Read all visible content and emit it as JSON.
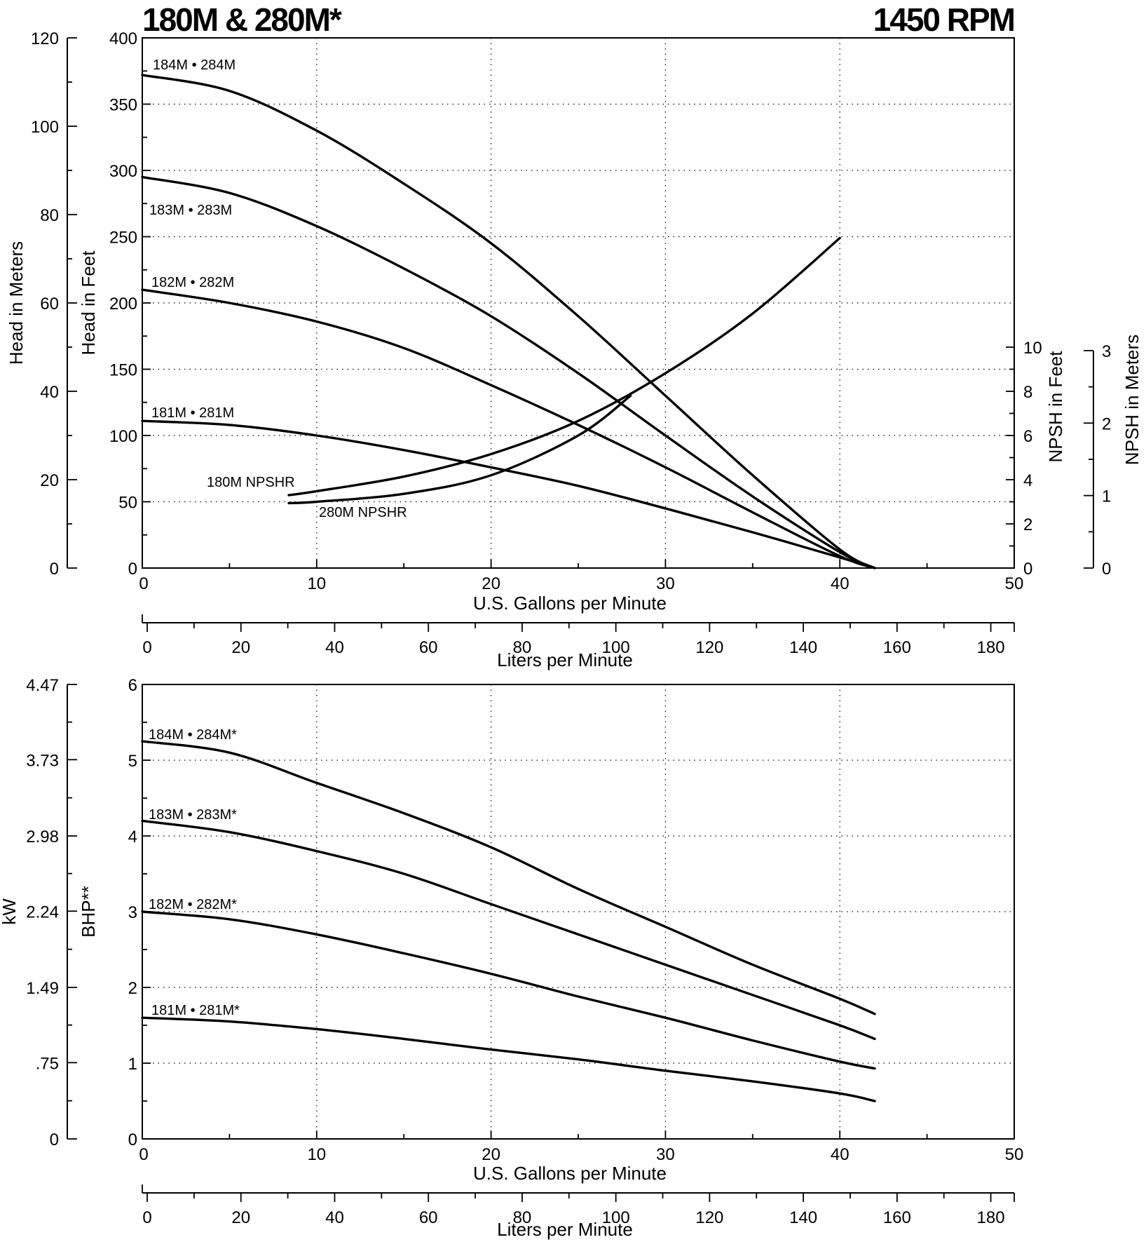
{
  "chart_data": [
    {
      "id": "head",
      "type": "line",
      "title": "180M & 280M*",
      "title_right": "1450 RPM",
      "xlabel": "U.S. Gallons per Minute",
      "x2label": "Liters per Minute",
      "ylabel": "Head in Feet",
      "y2label": "Head in Meters",
      "y3label": "NPSH in Feet",
      "y4label": "NPSH in Meters",
      "xlim": [
        0,
        50
      ],
      "ylim": [
        0,
        400
      ],
      "xticks": [
        "0",
        "10",
        "20",
        "30",
        "40",
        "50"
      ],
      "x2ticks": [
        "0",
        "20",
        "40",
        "60",
        "80",
        "100",
        "120",
        "140",
        "160",
        "180"
      ],
      "yticks": [
        "0",
        "50",
        "100",
        "150",
        "200",
        "250",
        "300",
        "350",
        "400"
      ],
      "y2ticks": [
        "0",
        "20",
        "40",
        "60",
        "80",
        "100",
        "120"
      ],
      "y3ticks": [
        "0",
        "2",
        "4",
        "6",
        "8",
        "10"
      ],
      "y4ticks": [
        "0",
        "1",
        "2",
        "3"
      ],
      "series": [
        {
          "name": "184M • 284M",
          "x": [
            0,
            5,
            10,
            15,
            20,
            25,
            30,
            35,
            40,
            42
          ],
          "y": [
            372,
            360,
            330,
            290,
            245,
            190,
            130,
            70,
            14,
            0
          ]
        },
        {
          "name": "183M • 283M",
          "x": [
            0,
            5,
            10,
            15,
            20,
            25,
            30,
            35,
            40,
            42
          ],
          "y": [
            295,
            283,
            258,
            226,
            190,
            147,
            100,
            54,
            12,
            0
          ]
        },
        {
          "name": "182M • 282M",
          "x": [
            0,
            5,
            10,
            15,
            20,
            25,
            30,
            35,
            40,
            42
          ],
          "y": [
            210,
            200,
            186,
            166,
            138,
            108,
            76,
            42,
            9,
            0
          ]
        },
        {
          "name": "181M • 281M",
          "x": [
            0,
            5,
            10,
            15,
            20,
            25,
            30,
            35,
            40,
            42
          ],
          "y": [
            111,
            108,
            100,
            89,
            76,
            62,
            45,
            27,
            8,
            0
          ]
        },
        {
          "name": "180M NPSHR",
          "x": [
            8.4,
            10,
            15,
            20,
            25,
            30,
            35,
            40
          ],
          "y": [
            55,
            58,
            69,
            86,
            111,
            147,
            192,
            249
          ]
        },
        {
          "name": "280M NPSHR",
          "x": [
            8.4,
            10,
            15,
            20,
            25,
            28
          ],
          "y": [
            49,
            50,
            56,
            70,
            100,
            130
          ]
        }
      ]
    },
    {
      "id": "power",
      "type": "line",
      "xlabel": "U.S. Gallons per Minute",
      "x2label": "Liters per Minute",
      "ylabel": "BHP**",
      "y2label": "kW",
      "xlim": [
        0,
        50
      ],
      "ylim": [
        0,
        6
      ],
      "xticks": [
        "0",
        "10",
        "20",
        "30",
        "40",
        "50"
      ],
      "x2ticks": [
        "0",
        "20",
        "40",
        "60",
        "80",
        "100",
        "120",
        "140",
        "160",
        "180"
      ],
      "yticks": [
        "0",
        "1",
        "2",
        "3",
        "4",
        "5",
        "6"
      ],
      "y2ticks": [
        "0",
        ".75",
        "1.49",
        "2.24",
        "2.98",
        "3.73",
        "4.47"
      ],
      "series": [
        {
          "name": "184M • 284M*",
          "x": [
            0,
            5,
            10,
            15,
            20,
            25,
            30,
            35,
            40,
            42
          ],
          "y": [
            5.25,
            5.1,
            4.7,
            4.3,
            3.85,
            3.3,
            2.8,
            2.3,
            1.85,
            1.65
          ]
        },
        {
          "name": "183M • 283M*",
          "x": [
            0,
            5,
            10,
            15,
            20,
            25,
            30,
            35,
            40,
            42
          ],
          "y": [
            4.2,
            4.05,
            3.8,
            3.5,
            3.1,
            2.7,
            2.3,
            1.9,
            1.5,
            1.32
          ]
        },
        {
          "name": "182M • 282M*",
          "x": [
            0,
            5,
            10,
            15,
            20,
            25,
            30,
            35,
            40,
            42
          ],
          "y": [
            3.0,
            2.9,
            2.7,
            2.45,
            2.18,
            1.88,
            1.6,
            1.3,
            1.02,
            0.93
          ]
        },
        {
          "name": "181M • 281M*",
          "x": [
            0,
            5,
            10,
            15,
            20,
            25,
            30,
            35,
            40,
            42
          ],
          "y": [
            1.6,
            1.55,
            1.45,
            1.32,
            1.18,
            1.05,
            0.9,
            0.76,
            0.6,
            0.5
          ]
        }
      ]
    }
  ]
}
